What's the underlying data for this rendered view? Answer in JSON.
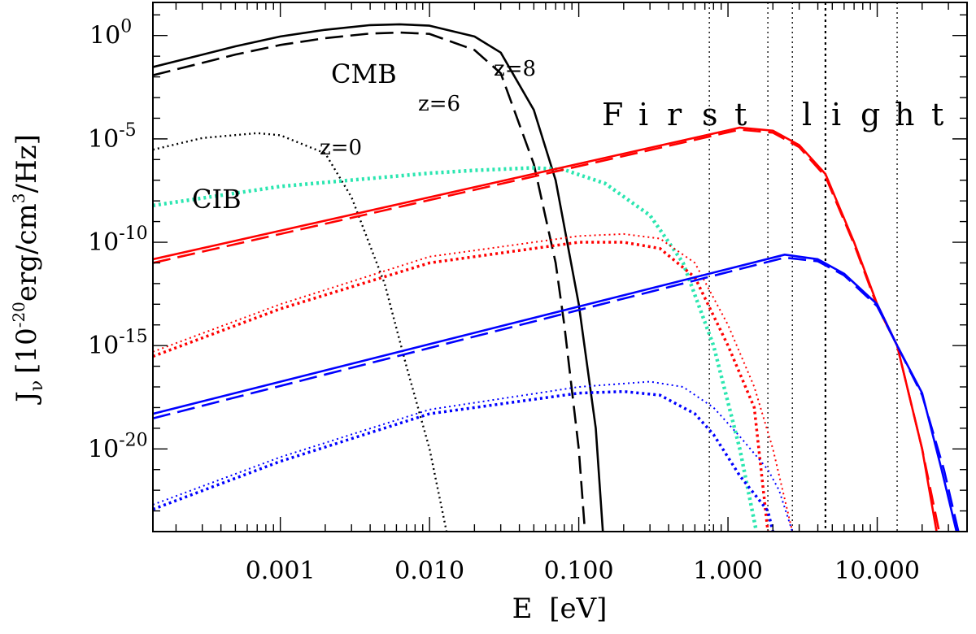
{
  "chart_data": {
    "type": "line",
    "xscale": "log",
    "yscale": "log",
    "xlim": [
      0.00014,
      40
    ],
    "ylim": [
      1e-24,
      40.0
    ],
    "xlabel": {
      "base": "E",
      "bracket": "[eV]"
    },
    "ylabel": {
      "symbol": "J",
      "sub": "ν",
      "base": "10",
      "exp": "-20",
      "unit_a": "erg/cm",
      "exp3": "3",
      "unit_b": "/Hz"
    },
    "xticks": [
      {
        "value": 0.001,
        "label": "0.001"
      },
      {
        "value": 0.01,
        "label": "0.010"
      },
      {
        "value": 0.1,
        "label": "0.100"
      },
      {
        "value": 1,
        "label": "1.000"
      },
      {
        "value": 10,
        "label": "10.000"
      }
    ],
    "yticks": [
      {
        "value": 1,
        "base": "10",
        "exp": "0"
      },
      {
        "value": 1e-05,
        "base": "10",
        "exp": "-5"
      },
      {
        "value": 1e-10,
        "base": "10",
        "exp": "-10"
      },
      {
        "value": 1e-15,
        "base": "10",
        "exp": "-15"
      },
      {
        "value": 1e-20,
        "base": "10",
        "exp": "-20"
      }
    ],
    "vlines": [
      0.75,
      1.85,
      2.7,
      4.5,
      13.6
    ],
    "annotations": {
      "cmb": "CMB",
      "cib": "CIB",
      "z8": "z=8",
      "z6": "z=6",
      "z0": "z=0",
      "first_light": [
        "F",
        "i",
        "r",
        "s",
        "t",
        "l",
        "i",
        "g",
        "h",
        "t"
      ]
    },
    "annotation_colors": {
      "cib": "#2be6b0"
    },
    "series": [
      {
        "name": "CMB z=8",
        "color": "#000000",
        "style": "solid",
        "width": 2.6,
        "points": [
          [
            0.00014,
            0.03
          ],
          [
            0.0005,
            0.3
          ],
          [
            0.001,
            0.9
          ],
          [
            0.002,
            1.9
          ],
          [
            0.004,
            3.2
          ],
          [
            0.0063,
            3.5
          ],
          [
            0.01,
            3.0
          ],
          [
            0.02,
            0.9
          ],
          [
            0.03,
            0.15
          ],
          [
            0.05,
            0.00025
          ],
          [
            0.07,
            1e-07
          ],
          [
            0.1,
            1e-13
          ],
          [
            0.13,
            1e-19
          ],
          [
            0.145,
            1e-24
          ]
        ]
      },
      {
        "name": "CMB z=6",
        "color": "#000000",
        "style": "dashed",
        "width": 2.6,
        "points": [
          [
            0.00014,
            0.012
          ],
          [
            0.0005,
            0.12
          ],
          [
            0.001,
            0.35
          ],
          [
            0.002,
            0.75
          ],
          [
            0.004,
            1.25
          ],
          [
            0.0063,
            1.4
          ],
          [
            0.01,
            1.2
          ],
          [
            0.02,
            0.2
          ],
          [
            0.03,
            0.015
          ],
          [
            0.05,
            6e-07
          ],
          [
            0.07,
            1e-11
          ],
          [
            0.08,
            1e-14
          ],
          [
            0.1,
            1e-20
          ],
          [
            0.11,
            1e-24
          ]
        ]
      },
      {
        "name": "CMB z=0",
        "color": "#000000",
        "style": "dotted",
        "width": 2.4,
        "points": [
          [
            0.00014,
            3e-06
          ],
          [
            0.0003,
            1.1e-05
          ],
          [
            0.0007,
            1.9e-05
          ],
          [
            0.001,
            1.5e-05
          ],
          [
            0.002,
            2e-06
          ],
          [
            0.003,
            1.5e-08
          ],
          [
            0.005,
            1e-12
          ],
          [
            0.007,
            1e-16
          ],
          [
            0.01,
            1e-20
          ],
          [
            0.013,
            1e-24
          ]
        ]
      },
      {
        "name": "CIB",
        "color": "#2be6b0",
        "style": "dotted",
        "width": 4.5,
        "points": [
          [
            0.00014,
            6e-09
          ],
          [
            0.001,
            5e-08
          ],
          [
            0.01,
            2.2e-07
          ],
          [
            0.02,
            3e-07
          ],
          [
            0.05,
            4e-07
          ],
          [
            0.08,
            3.2e-07
          ],
          [
            0.15,
            7e-08
          ],
          [
            0.3,
            2e-09
          ],
          [
            0.5,
            1e-11
          ],
          [
            0.8,
            1e-15
          ],
          [
            1.2,
            1e-20
          ],
          [
            1.55,
            1e-24
          ]
        ]
      },
      {
        "name": "red solid",
        "color": "#ff0000",
        "style": "solid",
        "width": 2.6,
        "points": [
          [
            0.00014,
            1.5e-11
          ],
          [
            1.2,
            3.5e-05
          ],
          [
            2.0,
            2.5e-05
          ],
          [
            3.0,
            5e-06
          ],
          [
            4.5,
            2e-07
          ],
          [
            7,
            1e-10
          ],
          [
            10,
            1e-13
          ],
          [
            13.6,
            1e-15
          ],
          [
            20,
            1e-20
          ],
          [
            25,
            1e-24
          ]
        ]
      },
      {
        "name": "red dashed",
        "color": "#ff0000",
        "style": "dashed",
        "width": 2.6,
        "points": [
          [
            0.00014,
            1e-11
          ],
          [
            1.2,
            2.8e-05
          ],
          [
            2.0,
            2e-05
          ],
          [
            3.0,
            4e-06
          ],
          [
            4.5,
            1.5e-07
          ],
          [
            7,
            8e-11
          ],
          [
            10,
            8e-14
          ],
          [
            13.6,
            1e-15
          ],
          [
            20,
            1e-20
          ],
          [
            26,
            1e-24
          ]
        ]
      },
      {
        "name": "red dotted a",
        "color": "#ff0000",
        "style": "dotted",
        "width": 2.0,
        "points": [
          [
            0.00014,
            5e-16
          ],
          [
            0.001,
            1e-13
          ],
          [
            0.01,
            2e-11
          ],
          [
            0.1,
            2e-10
          ],
          [
            0.2,
            2.5e-10
          ],
          [
            0.35,
            1.5e-10
          ],
          [
            0.6,
            1e-11
          ],
          [
            1.0,
            1e-14
          ],
          [
            1.5,
            1e-17
          ],
          [
            2.0,
            1e-20
          ],
          [
            2.7,
            1e-24
          ]
        ]
      },
      {
        "name": "red dotted b",
        "color": "#ff0000",
        "style": "dotted",
        "width": 3.5,
        "points": [
          [
            0.00014,
            3e-16
          ],
          [
            0.001,
            6e-14
          ],
          [
            0.01,
            1e-11
          ],
          [
            0.1,
            1e-10
          ],
          [
            0.2,
            1e-10
          ],
          [
            0.35,
            5e-11
          ],
          [
            0.6,
            2e-12
          ],
          [
            1.0,
            1e-15
          ],
          [
            1.5,
            1e-18
          ],
          [
            1.85,
            1e-24
          ]
        ]
      },
      {
        "name": "blue solid",
        "color": "#0000ff",
        "style": "solid",
        "width": 2.6,
        "points": [
          [
            0.00014,
            5e-19
          ],
          [
            2.4,
            2.5e-11
          ],
          [
            4,
            1.5e-11
          ],
          [
            6,
            3e-12
          ],
          [
            10,
            1e-13
          ],
          [
            13.6,
            1e-15
          ],
          [
            20,
            5e-18
          ],
          [
            27,
            1e-21
          ],
          [
            34,
            1e-24
          ]
        ]
      },
      {
        "name": "blue dashed",
        "color": "#0000ff",
        "style": "dashed",
        "width": 2.6,
        "points": [
          [
            0.00014,
            3e-19
          ],
          [
            2.4,
            1.8e-11
          ],
          [
            4,
            1.2e-11
          ],
          [
            6,
            2.5e-12
          ],
          [
            10,
            8e-14
          ],
          [
            13.6,
            1e-15
          ],
          [
            20,
            4e-18
          ],
          [
            28,
            1e-21
          ],
          [
            35,
            1e-24
          ]
        ]
      },
      {
        "name": "blue dotted a",
        "color": "#0000ff",
        "style": "dotted",
        "width": 2.0,
        "points": [
          [
            0.00014,
            2e-23
          ],
          [
            0.001,
            4e-21
          ],
          [
            0.01,
            8e-19
          ],
          [
            0.1,
            1e-17
          ],
          [
            0.3,
            1.8e-17
          ],
          [
            0.5,
            1e-17
          ],
          [
            0.8,
            1e-18
          ],
          [
            1.2,
            4e-20
          ],
          [
            1.85,
            1e-21
          ],
          [
            2.2,
            1e-22
          ],
          [
            2.7,
            1e-24
          ]
        ]
      },
      {
        "name": "blue dotted b",
        "color": "#0000ff",
        "style": "dotted",
        "width": 3.5,
        "points": [
          [
            0.00014,
            1.2e-23
          ],
          [
            0.001,
            2.5e-21
          ],
          [
            0.01,
            5e-19
          ],
          [
            0.1,
            5e-18
          ],
          [
            0.2,
            6e-18
          ],
          [
            0.35,
            4e-18
          ],
          [
            0.6,
            5e-19
          ],
          [
            0.8,
            5e-20
          ],
          [
            1.2,
            5e-22
          ],
          [
            1.85,
            1e-23
          ],
          [
            2.0,
            1e-24
          ]
        ]
      }
    ]
  }
}
